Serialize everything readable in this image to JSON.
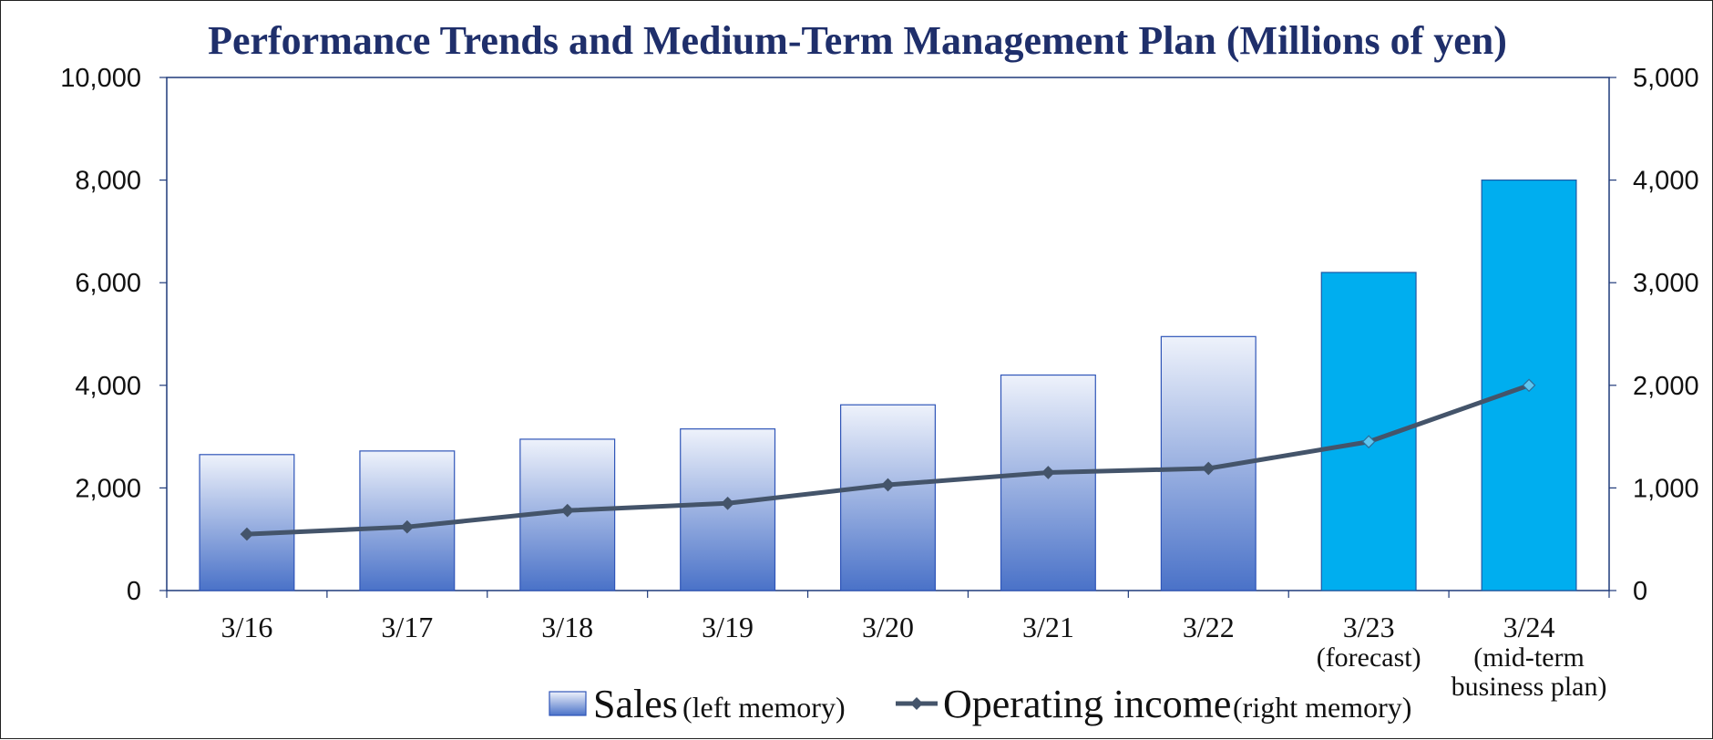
{
  "chart_data": {
    "type": "bar",
    "title": "Performance Trends and Medium-Term Management Plan (Millions of yen)",
    "categories": [
      {
        "lines": [
          "3/16"
        ]
      },
      {
        "lines": [
          "3/17"
        ]
      },
      {
        "lines": [
          "3/18"
        ]
      },
      {
        "lines": [
          "3/19"
        ]
      },
      {
        "lines": [
          "3/20"
        ]
      },
      {
        "lines": [
          "3/21"
        ]
      },
      {
        "lines": [
          "3/22"
        ]
      },
      {
        "lines": [
          "3/23",
          "(forecast)"
        ]
      },
      {
        "lines": [
          "3/24",
          "(mid-term",
          "business plan)"
        ]
      }
    ],
    "series": [
      {
        "name": "Sales",
        "name_suffix": "(left memory)",
        "type": "bar",
        "axis": "left",
        "values": [
          2650,
          2720,
          2950,
          3150,
          3620,
          4200,
          4950,
          6200,
          8000
        ],
        "color_actual_top": "#eef2fb",
        "color_actual_bottom": "#4a72c8",
        "color_plan": "#00aeef",
        "plan_from_index": 7
      },
      {
        "name": "Operating income",
        "name_suffix": "(right memory)",
        "type": "line",
        "axis": "right",
        "values": [
          550,
          620,
          780,
          850,
          1030,
          1150,
          1190,
          1450,
          2000
        ],
        "color": "#44546a"
      }
    ],
    "y_left": {
      "min": 0,
      "max": 10000,
      "ticks": [
        "0",
        "2,000",
        "4,000",
        "6,000",
        "8,000",
        "10,000"
      ]
    },
    "y_right": {
      "min": 0,
      "max": 5000,
      "ticks": [
        "0",
        "1,000",
        "2,000",
        "3,000",
        "4,000",
        "5,000"
      ]
    },
    "grid": false,
    "legend_position": "bottom"
  }
}
